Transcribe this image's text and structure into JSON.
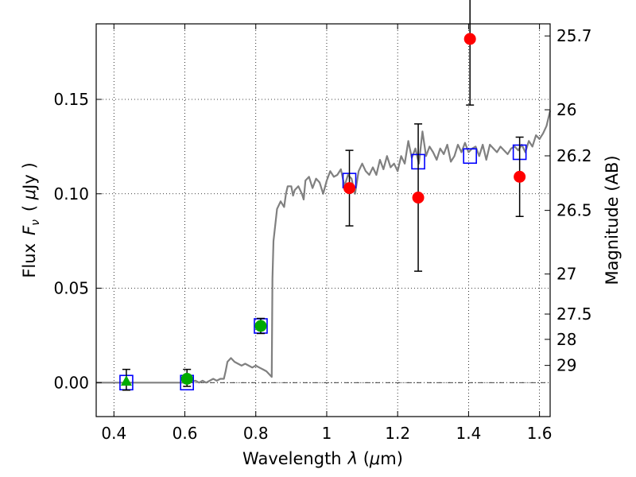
{
  "chart_data": {
    "type": "scatter",
    "title": "",
    "xlabel": "Wavelength  λ (μm)",
    "ylabel": "Flux  F_ν  ( μJy )",
    "ylabel_parts": {
      "a": "Flux",
      "b": "F",
      "c": "ν",
      "d": "( ",
      "e": "μ",
      "f": "Jy )"
    },
    "xlabel_parts": {
      "a": "Wavelength",
      "b": "λ",
      "c": " (",
      "d": "μ",
      "e": "m)"
    },
    "y2label": "Magnitude (AB)",
    "xlim": [
      0.35,
      1.63
    ],
    "ylim": [
      -0.018,
      0.19
    ],
    "grid": true,
    "x_ticks": [
      {
        "v": 0.4,
        "label": "0.4"
      },
      {
        "v": 0.6,
        "label": "0.6"
      },
      {
        "v": 0.8,
        "label": "0.8"
      },
      {
        "v": 1.0,
        "label": "1"
      },
      {
        "v": 1.2,
        "label": "1.2"
      },
      {
        "v": 1.4,
        "label": "1.4"
      },
      {
        "v": 1.6,
        "label": "1.6"
      }
    ],
    "y_ticks": [
      {
        "v": 0.0,
        "label": "0.00"
      },
      {
        "v": 0.05,
        "label": "0.05"
      },
      {
        "v": 0.1,
        "label": "0.10"
      },
      {
        "v": 0.15,
        "label": "0.15"
      }
    ],
    "mag_ticks": [
      {
        "v": 0.1836,
        "label": "25.7"
      },
      {
        "v": 0.1445,
        "label": "26"
      },
      {
        "v": 0.1201,
        "label": "26.2"
      },
      {
        "v": 0.0912,
        "label": "26.5"
      },
      {
        "v": 0.0575,
        "label": "27"
      },
      {
        "v": 0.0363,
        "label": "27.5"
      },
      {
        "v": 0.0229,
        "label": "28"
      },
      {
        "v": 0.0091,
        "label": "29"
      }
    ],
    "zero_line": {
      "y": 0,
      "style": "dash-dot"
    },
    "template_spectrum": {
      "color": "#808080",
      "x": [
        0.35,
        0.6,
        0.63,
        0.64,
        0.65,
        0.66,
        0.67,
        0.68,
        0.69,
        0.7,
        0.71,
        0.715,
        0.72,
        0.73,
        0.74,
        0.75,
        0.76,
        0.77,
        0.78,
        0.79,
        0.8,
        0.81,
        0.82,
        0.83,
        0.84,
        0.845,
        0.847,
        0.85,
        0.86,
        0.87,
        0.88,
        0.885,
        0.89,
        0.9,
        0.905,
        0.91,
        0.92,
        0.93,
        0.935,
        0.94,
        0.95,
        0.96,
        0.97,
        0.98,
        0.99,
        1.0,
        1.01,
        1.02,
        1.03,
        1.04,
        1.05,
        1.06,
        1.07,
        1.08,
        1.09,
        1.1,
        1.11,
        1.12,
        1.13,
        1.14,
        1.15,
        1.16,
        1.17,
        1.18,
        1.19,
        1.2,
        1.21,
        1.22,
        1.23,
        1.24,
        1.25,
        1.26,
        1.27,
        1.28,
        1.29,
        1.3,
        1.31,
        1.32,
        1.33,
        1.34,
        1.35,
        1.36,
        1.37,
        1.38,
        1.39,
        1.4,
        1.41,
        1.42,
        1.43,
        1.44,
        1.45,
        1.46,
        1.47,
        1.48,
        1.49,
        1.5,
        1.51,
        1.52,
        1.53,
        1.54,
        1.55,
        1.56,
        1.57,
        1.58,
        1.59,
        1.6,
        1.61,
        1.62,
        1.63
      ],
      "y": [
        0.0,
        0.0,
        0.001,
        0.0,
        0.001,
        0.0,
        0.001,
        0.002,
        0.001,
        0.002,
        0.002,
        0.006,
        0.011,
        0.013,
        0.011,
        0.01,
        0.009,
        0.01,
        0.009,
        0.008,
        0.009,
        0.008,
        0.007,
        0.006,
        0.004,
        0.003,
        0.055,
        0.075,
        0.092,
        0.096,
        0.093,
        0.1,
        0.104,
        0.104,
        0.099,
        0.102,
        0.104,
        0.1,
        0.097,
        0.107,
        0.109,
        0.103,
        0.108,
        0.106,
        0.1,
        0.107,
        0.112,
        0.109,
        0.11,
        0.113,
        0.104,
        0.11,
        0.108,
        0.1,
        0.112,
        0.116,
        0.112,
        0.11,
        0.114,
        0.11,
        0.118,
        0.113,
        0.12,
        0.114,
        0.116,
        0.112,
        0.12,
        0.116,
        0.128,
        0.119,
        0.124,
        0.116,
        0.133,
        0.12,
        0.125,
        0.122,
        0.118,
        0.124,
        0.121,
        0.126,
        0.117,
        0.12,
        0.126,
        0.122,
        0.127,
        0.122,
        0.124,
        0.125,
        0.12,
        0.126,
        0.118,
        0.126,
        0.124,
        0.122,
        0.125,
        0.123,
        0.121,
        0.124,
        0.125,
        0.123,
        0.126,
        0.122,
        0.128,
        0.125,
        0.131,
        0.129,
        0.132,
        0.136,
        0.144
      ]
    },
    "series": [
      {
        "marker": "square",
        "color": "#0000ff",
        "filled": false,
        "points": [
          {
            "x": 0.435,
            "y": 0.0
          },
          {
            "x": 0.606,
            "y": 0.0
          },
          {
            "x": 0.814,
            "y": 0.03
          },
          {
            "x": 1.064,
            "y": 0.107
          },
          {
            "x": 1.258,
            "y": 0.117
          },
          {
            "x": 1.404,
            "y": 0.12
          },
          {
            "x": 1.544,
            "y": 0.122
          }
        ]
      },
      {
        "marker": "triangle",
        "color": "#00aa00",
        "filled": true,
        "points": [
          {
            "x": 0.435,
            "y": 0.0005,
            "err_lo": 0.0045,
            "err_hi": 0.0065
          }
        ]
      },
      {
        "marker": "circle",
        "color": "#00aa00",
        "filled": true,
        "points": [
          {
            "x": 0.606,
            "y": 0.002,
            "err_lo": 0.004,
            "err_hi": 0.005
          },
          {
            "x": 0.814,
            "y": 0.03,
            "err_lo": 0.004,
            "err_hi": 0.004
          }
        ]
      },
      {
        "marker": "circle",
        "color": "#ff0000",
        "filled": true,
        "points": [
          {
            "x": 1.064,
            "y": 0.103,
            "err_lo": 0.02,
            "err_hi": 0.02
          },
          {
            "x": 1.258,
            "y": 0.098,
            "err_lo": 0.039,
            "err_hi": 0.039
          },
          {
            "x": 1.404,
            "y": 0.182,
            "err_lo": 0.035,
            "err_hi": 0.035
          },
          {
            "x": 1.544,
            "y": 0.109,
            "err_lo": 0.021,
            "err_hi": 0.021
          }
        ]
      }
    ]
  }
}
